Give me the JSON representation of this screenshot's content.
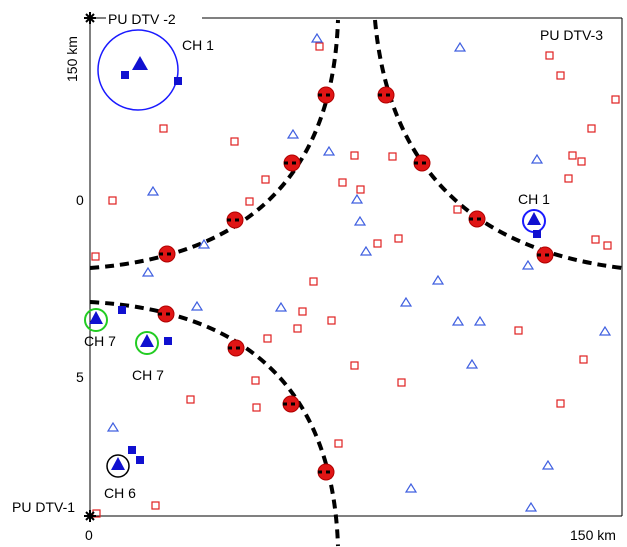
{
  "labels": {
    "pu_dtv_1": "PU DTV-1",
    "pu_dtv_2": "PU DTV -2",
    "pu_dtv_3": "PU DTV-3",
    "axis_top_left": "150 km",
    "axis_bottom_right": "150 km",
    "axis_origin": "0",
    "y_tick_0": "0",
    "y_tick_5": "5",
    "ch1_left": "CH 1",
    "ch1_right": "CH 1",
    "ch7_a": "CH 7",
    "ch7_b": "CH 7",
    "ch6": "CH 6"
  },
  "colors": {
    "boundary": "#000000",
    "contour": "#000000",
    "su_square": "#e02020",
    "su_triangle": "#4060e0",
    "sensor_fill": "#e01515",
    "active_fill": "#1010d0",
    "ring_blue": "#1a1aff",
    "ring_green": "#22cc22",
    "ring_black": "#000000"
  },
  "icons": {
    "transmitter": "star-burst-icon",
    "secondary_user": "hollow-square-icon",
    "cr_node": "hollow-triangle-icon",
    "sensor": "red-dot-icon"
  }
}
